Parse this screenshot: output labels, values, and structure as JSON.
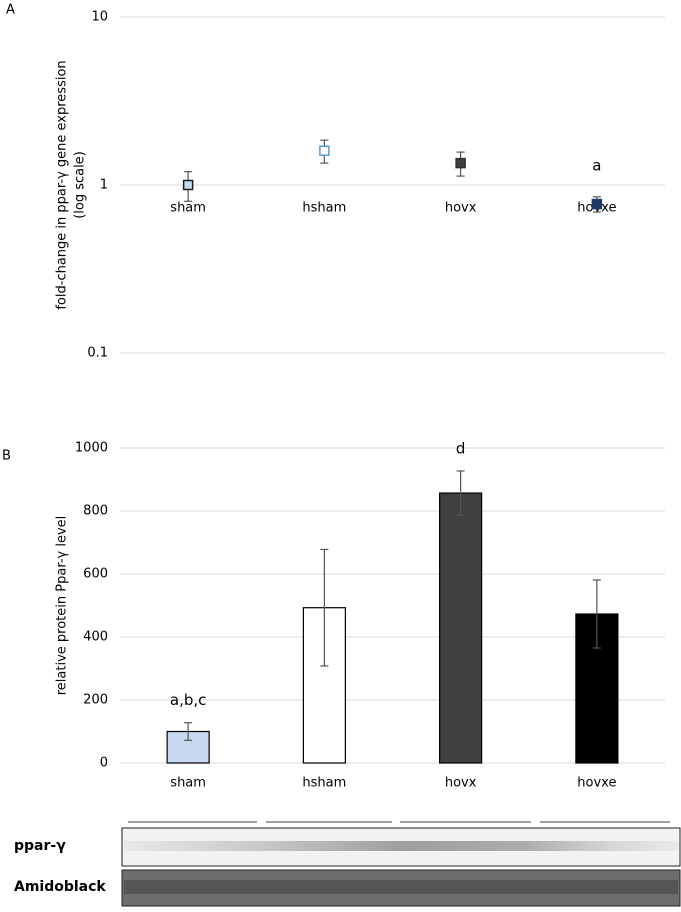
{
  "panel_labels": [
    "A",
    "B"
  ],
  "chart_data": [
    {
      "type": "scatter",
      "y_label": [
        "fold-change in ppar-γ gene expression",
        "(log scale)"
      ],
      "categories": [
        "sham",
        "hsham",
        "hovx",
        "hovxe"
      ],
      "values": [
        1.0,
        1.6,
        1.35,
        0.77
      ],
      "errors": [
        0.2,
        0.25,
        0.22,
        0.08
      ],
      "colors": [
        "#c6d9f1",
        "#ffffff",
        "#404040",
        "#1f3864"
      ],
      "edge_colors": [
        "#1f1f1f",
        "#5b9bd5",
        "#303030",
        "#1f3864"
      ],
      "annotations": [
        null,
        null,
        null,
        "a"
      ],
      "ylim": [
        0.1,
        10
      ],
      "yticks": [
        0.1,
        1,
        10
      ],
      "log_y": true,
      "grid": true
    },
    {
      "type": "bar",
      "y_label": [
        "relative protein Ppar-γ level"
      ],
      "categories": [
        "sham",
        "hsham",
        "hovx",
        "hovxe"
      ],
      "values": [
        100,
        493,
        857,
        473
      ],
      "errors": [
        28,
        185,
        70,
        108
      ],
      "colors": [
        "#c6d9f1",
        "#ffffff",
        "#404040",
        "#000000"
      ],
      "edge_colors": [
        "#000000",
        "#000000",
        "#000000",
        "#000000"
      ],
      "annotations": [
        "a,b,c",
        null,
        "d",
        null
      ],
      "ylim": [
        0,
        1000
      ],
      "yticks": [
        0,
        200,
        400,
        600,
        800,
        1000
      ],
      "log_y": false,
      "grid": true
    }
  ],
  "blot": {
    "rows": [
      "ppar-γ",
      "Amidoblack"
    ]
  }
}
